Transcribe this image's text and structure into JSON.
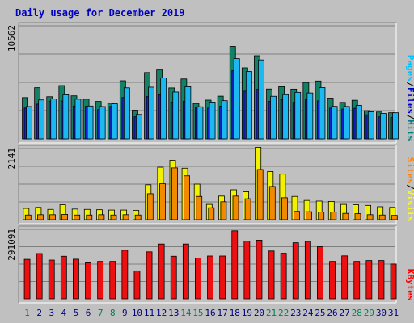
{
  "chart_data": {
    "type": "bar",
    "title": "Daily usage for December 2019",
    "categories": [
      "1",
      "2",
      "3",
      "4",
      "5",
      "6",
      "7",
      "8",
      "9",
      "10",
      "11",
      "12",
      "13",
      "14",
      "15",
      "16",
      "17",
      "18",
      "19",
      "20",
      "21",
      "22",
      "23",
      "24",
      "25",
      "26",
      "27",
      "28",
      "29",
      "30",
      "31"
    ],
    "weekend_days": [
      "1",
      "7",
      "8",
      "14",
      "15",
      "21",
      "22",
      "28",
      "29"
    ],
    "panels": [
      {
        "name": "top",
        "max_label": "10562",
        "ymax": 10562,
        "legend": [
          {
            "text": "Pages",
            "color": "#00c0ff"
          },
          {
            "text": "/",
            "color": "#000000"
          },
          {
            "text": "Files",
            "color": "#0000c0"
          },
          {
            "text": "/",
            "color": "#000000"
          },
          {
            "text": "Hits",
            "color": "#008080"
          }
        ],
        "series": [
          {
            "name": "Hits",
            "color": "#148066",
            "values": [
              3860,
              4780,
              3940,
              4980,
              4020,
              3710,
              3500,
              3330,
              5430,
              2680,
              6200,
              6440,
              4760,
              5600,
              3310,
              3620,
              3990,
              8640,
              6640,
              7770,
              4660,
              4880,
              4650,
              5270,
              5410,
              3810,
              3410,
              3610,
              2640,
              2510,
              2440
            ]
          },
          {
            "name": "Files",
            "color": "#1a22d1",
            "values": [
              2880,
              3250,
              3530,
              3540,
              3070,
              3050,
              2740,
              3030,
              3860,
              2060,
              3950,
              4110,
              3430,
              3510,
              2960,
              2880,
              3060,
              6370,
              4460,
              4630,
              3510,
              3660,
              3420,
              3660,
              3550,
              2870,
              2780,
              2860,
              2250,
              2050,
              1990
            ]
          },
          {
            "name": "Pages",
            "color": "#1cb8f2",
            "values": [
              3020,
              3640,
              3730,
              4120,
              3710,
              3070,
              3020,
              3280,
              4770,
              2280,
              4830,
              5700,
              4380,
              4870,
              3000,
              3440,
              3570,
              7500,
              6300,
              7380,
              3980,
              4130,
              4350,
              4290,
              4790,
              3040,
              3030,
              3140,
              2530,
              2370,
              2440
            ]
          }
        ]
      },
      {
        "name": "middle",
        "max_label": "2141",
        "ymax": 2141,
        "legend": [
          {
            "text": "Sites",
            "color": "#ff8000"
          },
          {
            "text": "/",
            "color": "#000000"
          },
          {
            "text": "Visits",
            "color": "#ffff00"
          }
        ],
        "series": [
          {
            "name": "Visits",
            "color": "#f2f200",
            "values": [
              340,
              370,
              310,
              450,
              320,
              310,
              300,
              290,
              290,
              280,
              1050,
              1580,
              1790,
              1550,
              1070,
              460,
              710,
              900,
              840,
              2180,
              1450,
              1370,
              700,
              580,
              560,
              550,
              460,
              450,
              430,
              390,
              370
            ]
          },
          {
            "name": "Sites",
            "color": "#f28a00",
            "values": [
              140,
              150,
              150,
              160,
              140,
              140,
              150,
              140,
              150,
              140,
              780,
              1080,
              1560,
              1320,
              700,
              360,
              540,
              710,
              630,
              1510,
              1000,
              660,
              250,
              240,
              230,
              230,
              190,
              180,
              150,
              140,
              130
            ]
          }
        ]
      },
      {
        "name": "bottom",
        "max_label": "291091",
        "ymax": 291091,
        "legend": [
          {
            "text": "KBytes",
            "color": "#ff0000"
          }
        ],
        "series": [
          {
            "name": "KBytes",
            "color": "#ee1010",
            "values": [
              165500,
              189600,
              162300,
              178500,
              166200,
              150900,
              156900,
              156900,
              203600,
              117200,
              196900,
              229600,
              178500,
              229600,
              171100,
              179400,
              179400,
              285000,
              242000,
              245700,
              200400,
              190900,
              234800,
              240700,
              218300,
              156900,
              180000,
              156900,
              160400,
              160400,
              145800
            ]
          }
        ]
      }
    ]
  }
}
